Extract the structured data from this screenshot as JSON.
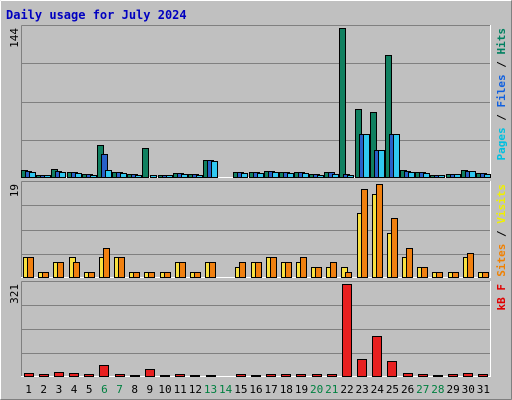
{
  "chart_data": {
    "type": "bar",
    "title": "Daily usage for July 2024",
    "categories": [
      "1",
      "2",
      "3",
      "4",
      "5",
      "6",
      "7",
      "8",
      "9",
      "10",
      "11",
      "12",
      "13",
      "14",
      "15",
      "16",
      "17",
      "18",
      "19",
      "20",
      "21",
      "22",
      "23",
      "24",
      "25",
      "26",
      "27",
      "28",
      "29",
      "30",
      "31"
    ],
    "weekend_days": [
      "6",
      "7",
      "13",
      "14",
      "20",
      "21",
      "27",
      "28"
    ],
    "panels": [
      {
        "id": "hits",
        "ylim": [
          0,
          144
        ],
        "max_label": "144",
        "legend": [
          {
            "text": "Pages",
            "color": "#00c0e0"
          },
          {
            "text": " / ",
            "color": "#000000"
          },
          {
            "text": "Files",
            "color": "#1060e0"
          },
          {
            "text": " / ",
            "color": "#000000"
          },
          {
            "text": "Hits",
            "color": "#008060"
          }
        ],
        "series": [
          {
            "name": "Hits",
            "color": "#108060",
            "values": [
              7,
              2,
              8,
              5,
              3,
              31,
              5,
              3,
              28,
              2,
              4,
              3,
              16,
              0,
              5,
              5,
              6,
              5,
              5,
              3,
              5,
              144,
              66,
              63,
              118,
              7,
              5,
              2,
              3,
              7,
              4
            ]
          },
          {
            "name": "Files",
            "color": "#2860c8",
            "values": [
              6,
              2,
              6,
              5,
              3,
              22,
              5,
              3,
              0,
              2,
              4,
              3,
              16,
              0,
              5,
              5,
              6,
              5,
              5,
              3,
              5,
              3,
              42,
              26,
              42,
              6,
              5,
              2,
              3,
              6,
              4
            ]
          },
          {
            "name": "Pages",
            "color": "#30c8f0",
            "values": [
              5,
              2,
              5,
              4,
              2,
              7,
              4,
              2,
              2,
              2,
              3,
              2,
              15,
              0,
              4,
              4,
              5,
              4,
              4,
              2,
              3,
              2,
              42,
              26,
              42,
              5,
              4,
              2,
              3,
              6,
              3
            ]
          }
        ]
      },
      {
        "id": "visits",
        "ylim": [
          0,
          19
        ],
        "max_label": "19",
        "legend": [
          {
            "text": "Sites",
            "color": "#f08000"
          },
          {
            "text": " / ",
            "color": "#000000"
          },
          {
            "text": "Visits",
            "color": "#f0f000"
          }
        ],
        "series": [
          {
            "name": "Visits",
            "color": "#f8e040",
            "values": [
              4,
              1,
              3,
              4,
              1,
              4,
              4,
              1,
              1,
              1,
              3,
              1,
              3,
              0,
              2,
              3,
              4,
              3,
              3,
              2,
              2,
              2,
              13,
              17,
              9,
              4,
              2,
              1,
              1,
              4,
              1
            ]
          },
          {
            "name": "Sites",
            "color": "#f08010",
            "values": [
              4,
              1,
              3,
              3,
              1,
              6,
              4,
              1,
              1,
              1,
              3,
              1,
              3,
              0,
              3,
              3,
              4,
              3,
              4,
              2,
              3,
              1,
              18,
              19,
              12,
              6,
              2,
              1,
              1,
              5,
              1
            ]
          }
        ]
      },
      {
        "id": "kbytes",
        "ylim": [
          0,
          321
        ],
        "max_label": "321",
        "legend": [
          {
            "text": "kB F",
            "color": "#e00000"
          }
        ],
        "series": [
          {
            "name": "kB F",
            "color": "#e82020",
            "values": [
              11,
              7,
              14,
              12,
              6,
              38,
              7,
              2,
              24,
              4,
              6,
              5,
              5,
              0,
              7,
              3,
              8,
              7,
              8,
              6,
              8,
              321,
              60,
              140,
              52,
              12,
              7,
              5,
              6,
              10,
              6
            ]
          }
        ]
      }
    ]
  }
}
